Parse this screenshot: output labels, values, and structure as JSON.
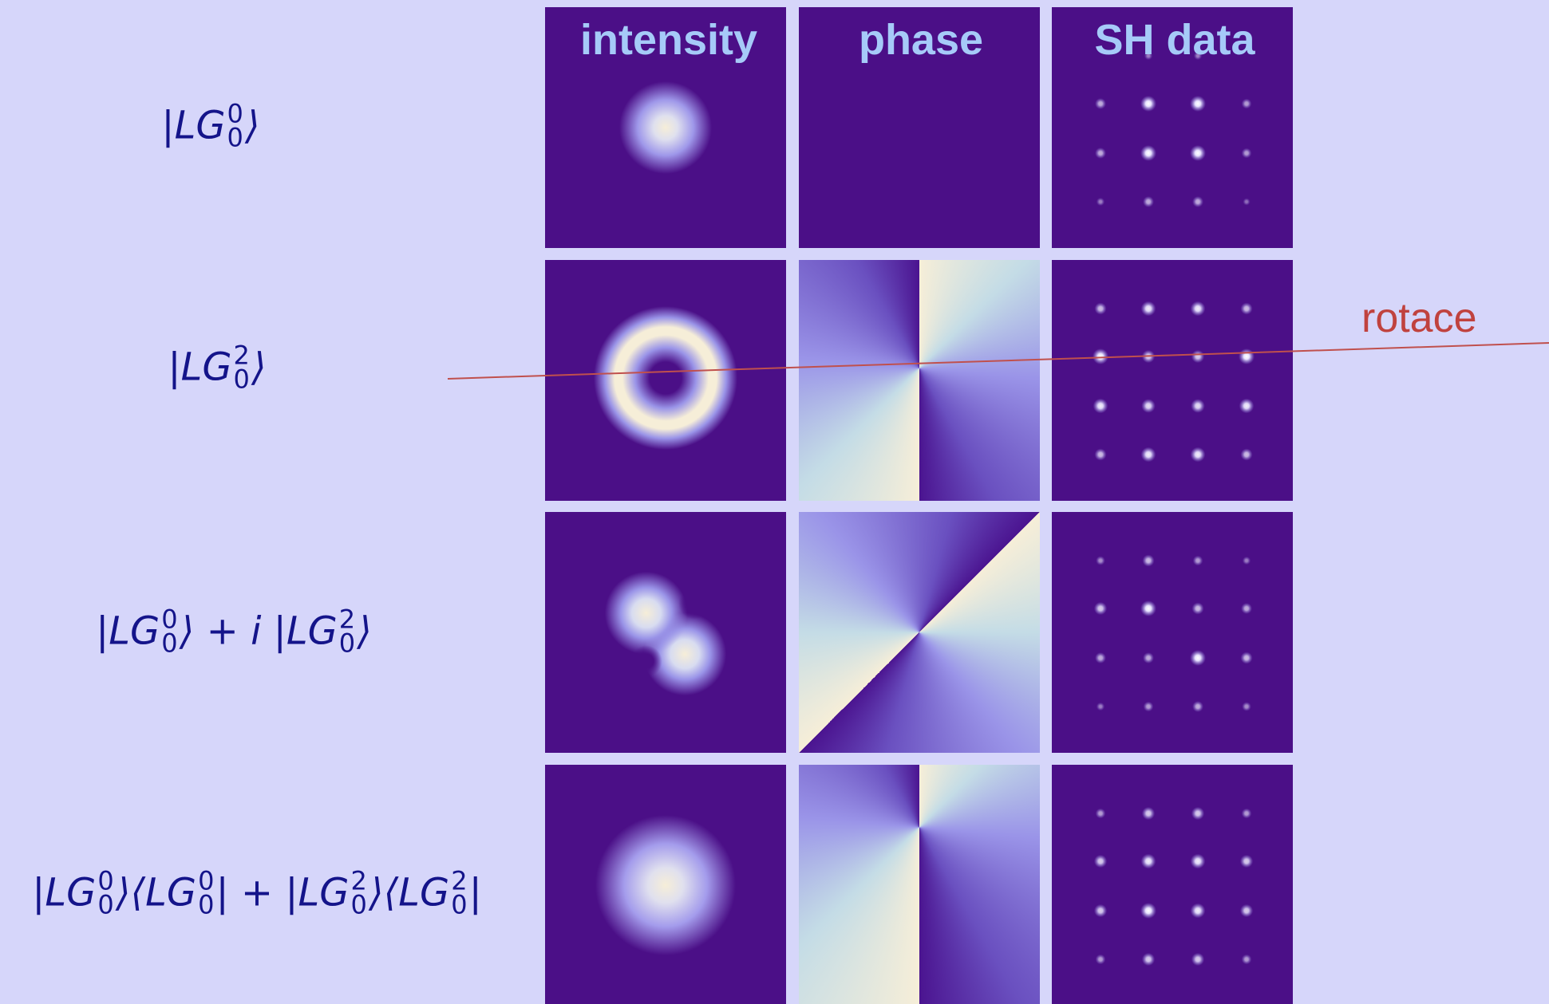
{
  "columns": [
    "intensity",
    "phase",
    "SH data"
  ],
  "rows": [
    {
      "label": [
        {
          "text": "|LG"
        },
        {
          "sup": "0",
          "sub": "0"
        },
        {
          "text": "⟩"
        }
      ]
    },
    {
      "label": [
        {
          "text": "|LG"
        },
        {
          "sup": "2",
          "sub": "0"
        },
        {
          "text": "⟩"
        }
      ]
    },
    {
      "label": [
        {
          "text": "|LG"
        },
        {
          "sup": "0",
          "sub": "0"
        },
        {
          "text": "⟩ + i |LG"
        },
        {
          "sup": "2",
          "sub": "0"
        },
        {
          "text": "⟩"
        }
      ]
    },
    {
      "label": [
        {
          "text": "|LG"
        },
        {
          "sup": "0",
          "sub": "0"
        },
        {
          "text": "⟩⟨LG"
        },
        {
          "sup": "0",
          "sub": "0"
        },
        {
          "text": "| + |LG"
        },
        {
          "sup": "2",
          "sub": "0"
        },
        {
          "text": "⟩⟨LG"
        },
        {
          "sup": "2",
          "sub": "0"
        },
        {
          "text": "|"
        }
      ]
    }
  ],
  "annotation": "rotace"
}
